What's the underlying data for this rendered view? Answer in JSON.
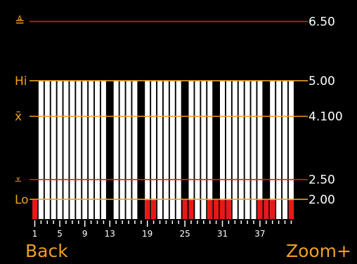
{
  "chart_data": {
    "type": "bar",
    "categories": [
      "1",
      "2",
      "3",
      "4",
      "5",
      "6",
      "7",
      "8",
      "9",
      "10",
      "11",
      "12",
      "13",
      "14",
      "15",
      "16",
      "17",
      "18",
      "19",
      "20",
      "21",
      "22",
      "23",
      "24",
      "25",
      "26",
      "27",
      "28",
      "29",
      "30",
      "31",
      "32",
      "33",
      "34",
      "35",
      "36",
      "37",
      "38",
      "39",
      "40",
      "41",
      "42"
    ],
    "values": [
      5,
      5,
      5,
      5,
      5,
      5,
      5,
      5,
      5,
      5,
      5,
      5,
      5,
      5,
      5,
      5,
      5,
      5,
      5,
      5,
      5,
      5,
      5,
      5,
      5,
      5,
      5,
      5,
      5,
      5,
      5,
      5,
      5,
      5,
      5,
      5,
      5,
      5,
      5,
      5,
      5,
      5
    ],
    "present": [
      0,
      1,
      1,
      1,
      1,
      1,
      1,
      1,
      1,
      1,
      1,
      1,
      0,
      1,
      1,
      1,
      1,
      0,
      1,
      1,
      1,
      1,
      1,
      1,
      0,
      1,
      1,
      1,
      1,
      0,
      1,
      1,
      1,
      1,
      1,
      1,
      1,
      0,
      1,
      1,
      1,
      1
    ],
    "below_lo": [
      1,
      0,
      0,
      0,
      0,
      0,
      0,
      0,
      0,
      0,
      0,
      0,
      0,
      0,
      0,
      0,
      0,
      0,
      1,
      1,
      0,
      0,
      0,
      0,
      1,
      1,
      0,
      0,
      1,
      1,
      1,
      1,
      0,
      0,
      0,
      0,
      1,
      1,
      1,
      0,
      0,
      1
    ],
    "x_ticks": [
      "1",
      "5",
      "9",
      "13",
      "19",
      "25",
      "31",
      "37"
    ],
    "ylim": [
      1.5,
      6.9
    ],
    "limits": [
      {
        "key": "upper",
        "label": "≜",
        "value": 6.5,
        "value_label": "6.50",
        "color": "#d82020"
      },
      {
        "key": "hi",
        "label": "Hi",
        "value": 5.0,
        "value_label": "5.00",
        "color": "#f0a020"
      },
      {
        "key": "mean",
        "label": "x̄",
        "value": 4.1,
        "value_label": "4.100",
        "color": "#f0a020"
      },
      {
        "key": "lower",
        "label": "⩡",
        "value": 2.5,
        "value_label": "2.50",
        "color": "#d82020"
      },
      {
        "key": "lo",
        "label": "Lo",
        "value": 2.0,
        "value_label": "2.00",
        "color": "#f0a020"
      }
    ],
    "bar_color": "#ffffff",
    "below_lo_color": "#e81818"
  },
  "softkeys": {
    "left": "Back",
    "right": "Zoom+"
  }
}
